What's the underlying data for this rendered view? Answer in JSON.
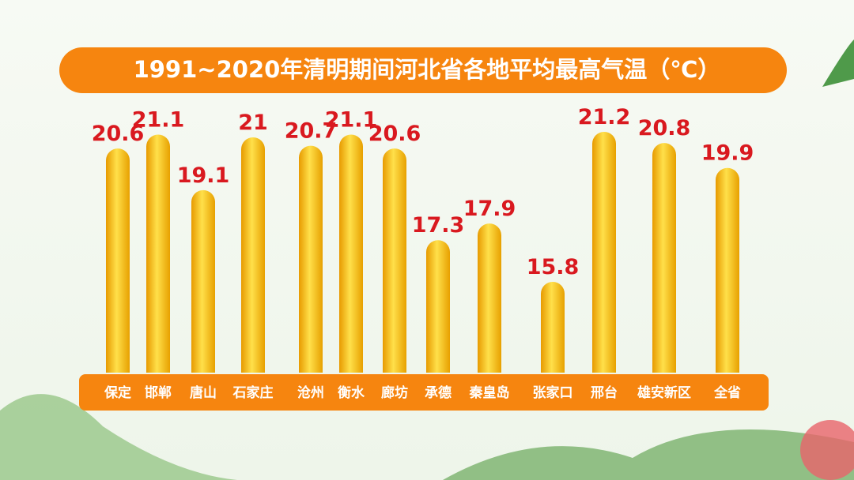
{
  "chart_data": {
    "type": "bar",
    "title": "1991~2020年清明期间河北省各地平均最高气温（℃）",
    "categories": [
      "保定",
      "邯郸",
      "唐山",
      "石家庄",
      "沧州",
      "衡水",
      "廊坊",
      "承德",
      "秦皇岛",
      "张家口",
      "邢台",
      "雄安新区",
      "全省"
    ],
    "values": [
      20.6,
      21.1,
      19.1,
      21,
      20.7,
      21.1,
      20.6,
      17.3,
      17.9,
      15.8,
      21.2,
      20.8,
      19.9
    ],
    "color": "#f5b800"
  }
}
